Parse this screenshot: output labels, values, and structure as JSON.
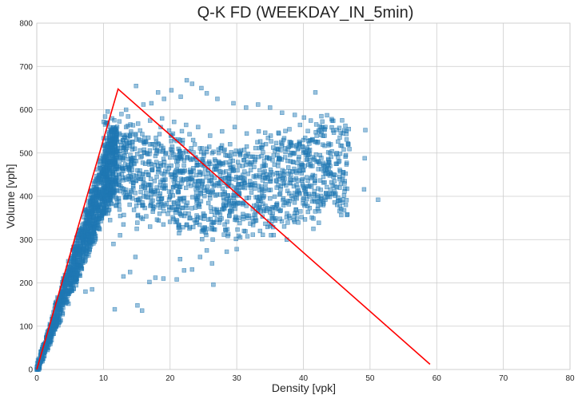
{
  "colors": {
    "point_fill": "#1f77b4",
    "point_stroke": "#1f77b4",
    "fd_line": "#ff0000",
    "grid": "#cccccc",
    "background": "#ffffff"
  },
  "chart_data": {
    "type": "scatter",
    "title": "Q-K FD (WEEKDAY_IN_5min)",
    "xlabel": "Density [vpk]",
    "ylabel": "Volume [vph]",
    "xlim": [
      0,
      80
    ],
    "ylim": [
      0,
      800
    ],
    "x_ticks": [
      0,
      10,
      20,
      30,
      40,
      50,
      60,
      70,
      80
    ],
    "y_ticks": [
      0,
      100,
      200,
      300,
      400,
      500,
      600,
      700,
      800
    ],
    "grid": true,
    "series": [
      {
        "type": "scatter",
        "marker": "square",
        "opacity": 0.45,
        "clusters": [
          {
            "description": "free-flow band",
            "x_range": [
              0,
              10
            ],
            "y_per_x": [
              35,
              50
            ]
          },
          {
            "description": "congested cloud",
            "x_range": [
              10,
              47
            ],
            "y_range": [
              300,
              600
            ]
          }
        ],
        "points": [
          [
            0.2,
            5
          ],
          [
            0.5,
            15
          ],
          [
            0.8,
            30
          ],
          [
            1.2,
            45
          ],
          [
            1.5,
            60
          ],
          [
            2,
            80
          ],
          [
            2.5,
            100
          ],
          [
            3,
            120
          ],
          [
            3.5,
            140
          ],
          [
            4,
            160
          ],
          [
            4.5,
            180
          ],
          [
            5,
            200
          ],
          [
            5.5,
            220
          ],
          [
            6,
            240
          ],
          [
            6.5,
            260
          ],
          [
            7,
            280
          ],
          [
            7.5,
            300
          ],
          [
            8,
            330
          ],
          [
            8.5,
            350
          ],
          [
            9,
            380
          ],
          [
            9.5,
            400
          ],
          [
            10,
            420
          ],
          [
            10.5,
            440
          ],
          [
            11,
            460
          ],
          [
            8.3,
            185
          ],
          [
            7.3,
            180
          ],
          [
            11.7,
            139
          ],
          [
            15.1,
            148
          ],
          [
            15.8,
            136
          ],
          [
            17.8,
            212
          ],
          [
            19,
            210
          ],
          [
            21,
            208
          ],
          [
            16.9,
            202
          ],
          [
            22.1,
            229
          ],
          [
            23.3,
            231
          ],
          [
            26.5,
            196
          ],
          [
            26.3,
            245
          ],
          [
            24.5,
            260
          ],
          [
            33.5,
            320
          ],
          [
            37.5,
            300
          ],
          [
            41.5,
            325
          ],
          [
            36.5,
            348
          ],
          [
            28.5,
            272
          ],
          [
            30,
            278
          ],
          [
            25.5,
            275
          ],
          [
            21.5,
            255
          ],
          [
            13,
            215
          ],
          [
            14,
            225
          ],
          [
            14.8,
            260
          ],
          [
            12.5,
            310
          ],
          [
            11.5,
            290
          ],
          [
            14.9,
            655
          ],
          [
            18.2,
            640
          ],
          [
            20.2,
            645
          ],
          [
            22.5,
            668
          ],
          [
            23.3,
            660
          ],
          [
            24.7,
            650
          ],
          [
            25.5,
            638
          ],
          [
            21.6,
            630
          ],
          [
            19.1,
            625
          ],
          [
            17.2,
            615
          ],
          [
            16,
            612
          ],
          [
            13.4,
            600
          ],
          [
            12.7,
            590
          ],
          [
            11.3,
            580
          ],
          [
            10.4,
            570
          ],
          [
            27.1,
            625
          ],
          [
            29.5,
            615
          ],
          [
            31.4,
            605
          ],
          [
            33.2,
            612
          ],
          [
            35,
            605
          ],
          [
            36.8,
            593
          ],
          [
            38.7,
            588
          ],
          [
            40.1,
            582
          ],
          [
            41.8,
            640
          ],
          [
            43.3,
            560
          ],
          [
            45.4,
            558
          ],
          [
            46.3,
            563
          ],
          [
            44.1,
            520
          ],
          [
            42.5,
            495
          ],
          [
            40.8,
            505
          ],
          [
            38.9,
            515
          ],
          [
            37,
            530
          ],
          [
            35.1,
            540
          ],
          [
            33.3,
            550
          ],
          [
            31.5,
            545
          ],
          [
            29.7,
            560
          ],
          [
            27.8,
            550
          ],
          [
            26,
            540
          ],
          [
            24.2,
            560
          ],
          [
            22.4,
            565
          ],
          [
            20.6,
            572
          ],
          [
            18.8,
            580
          ],
          [
            17,
            575
          ],
          [
            15.2,
            568
          ],
          [
            13.4,
            560
          ],
          [
            11.6,
            550
          ],
          [
            49.3,
            553
          ],
          [
            49.2,
            488
          ],
          [
            49.1,
            416
          ],
          [
            51.2,
            392
          ],
          [
            46.1,
            402
          ],
          [
            45.2,
            390
          ],
          [
            44.2,
            432
          ],
          [
            43.3,
            461
          ],
          [
            42.2,
            418
          ],
          [
            41.3,
            445
          ],
          [
            40.2,
            470
          ],
          [
            39.1,
            420
          ],
          [
            38.1,
            430
          ],
          [
            37.1,
            450
          ],
          [
            36.2,
            470
          ],
          [
            35.1,
            440
          ],
          [
            34.1,
            400
          ],
          [
            33.2,
            390
          ],
          [
            32.1,
            420
          ],
          [
            31.1,
            430
          ],
          [
            30.1,
            460
          ],
          [
            29.2,
            440
          ],
          [
            28.2,
            410
          ],
          [
            27.1,
            430
          ],
          [
            26.2,
            450
          ],
          [
            25.1,
            420
          ],
          [
            24.2,
            400
          ],
          [
            23.1,
            440
          ],
          [
            22.2,
            460
          ],
          [
            21.1,
            430
          ],
          [
            20.2,
            410
          ],
          [
            19.1,
            450
          ],
          [
            18.2,
            470
          ],
          [
            17.1,
            440
          ],
          [
            16.2,
            420
          ],
          [
            15.1,
            460
          ],
          [
            14.2,
            480
          ],
          [
            13.1,
            500
          ],
          [
            12.2,
            510
          ],
          [
            11.2,
            520
          ],
          [
            10.6,
            500
          ],
          [
            12,
            470
          ],
          [
            13.8,
            440
          ],
          [
            15.6,
            410
          ],
          [
            17.4,
            390
          ],
          [
            19.2,
            380
          ],
          [
            21,
            370
          ],
          [
            22.8,
            360
          ],
          [
            24.6,
            350
          ],
          [
            26.4,
            340
          ],
          [
            28.2,
            335
          ],
          [
            30,
            345
          ],
          [
            31.8,
            355
          ],
          [
            33.6,
            365
          ],
          [
            35.4,
            375
          ],
          [
            37.2,
            385
          ],
          [
            39,
            395
          ],
          [
            40.8,
            405
          ],
          [
            42.6,
            415
          ],
          [
            44.4,
            425
          ],
          [
            46.2,
            435
          ],
          [
            34.5,
            490
          ],
          [
            32.7,
            480
          ],
          [
            30.9,
            470
          ],
          [
            29.1,
            490
          ],
          [
            27.3,
            500
          ],
          [
            25.5,
            510
          ],
          [
            23.7,
            520
          ],
          [
            21.9,
            530
          ],
          [
            20.1,
            540
          ],
          [
            18.3,
            520
          ],
          [
            16.5,
            500
          ],
          [
            14.7,
            510
          ],
          [
            12.9,
            530
          ],
          [
            28,
            380
          ],
          [
            26,
            395
          ],
          [
            24,
            385
          ],
          [
            22,
            395
          ],
          [
            20,
            400
          ],
          [
            18,
            420
          ],
          [
            16,
            440
          ],
          [
            14,
            455
          ],
          [
            36,
            420
          ],
          [
            38,
            440
          ],
          [
            40,
            460
          ],
          [
            42,
            480
          ],
          [
            44,
            470
          ],
          [
            46,
            455
          ],
          [
            34,
            455
          ],
          [
            32,
            435
          ],
          [
            30,
            415
          ],
          [
            28,
            455
          ],
          [
            26,
            475
          ],
          [
            24,
            485
          ],
          [
            22,
            500
          ],
          [
            20,
            490
          ],
          [
            18,
            505
          ],
          [
            16,
            525
          ],
          [
            14,
            540
          ],
          [
            12,
            545
          ],
          [
            36,
            510
          ],
          [
            38,
            495
          ],
          [
            40,
            530
          ],
          [
            42,
            540
          ],
          [
            44,
            500
          ],
          [
            45,
            475
          ],
          [
            43,
            445
          ],
          [
            41,
            425
          ],
          [
            39,
            405
          ],
          [
            37,
            395
          ],
          [
            35,
            395
          ],
          [
            33,
            380
          ],
          [
            31,
            385
          ],
          [
            29,
            365
          ],
          [
            27,
            370
          ],
          [
            25,
            360
          ],
          [
            23,
            350
          ],
          [
            21,
            345
          ],
          [
            19,
            335
          ],
          [
            17,
            330
          ],
          [
            15,
            325
          ],
          [
            13,
            335
          ],
          [
            11,
            345
          ],
          [
            12.3,
            395
          ],
          [
            13.9,
            405
          ],
          [
            15.5,
            395
          ],
          [
            17.1,
            405
          ],
          [
            18.7,
            395
          ],
          [
            20.3,
            445
          ],
          [
            21.9,
            455
          ],
          [
            23.5,
            465
          ],
          [
            25.1,
            475
          ],
          [
            26.7,
            485
          ],
          [
            28.3,
            495
          ],
          [
            29.9,
            505
          ],
          [
            31.5,
            515
          ],
          [
            33.1,
            525
          ],
          [
            34.7,
            535
          ],
          [
            36.3,
            545
          ],
          [
            37.9,
            555
          ],
          [
            39.5,
            565
          ],
          [
            41.1,
            575
          ],
          [
            42.7,
            585
          ],
          [
            44.3,
            575
          ],
          [
            45.9,
            545
          ]
        ]
      },
      {
        "type": "line",
        "points": [
          [
            0,
            0
          ],
          [
            12.2,
            648
          ],
          [
            59,
            12
          ]
        ]
      }
    ]
  }
}
